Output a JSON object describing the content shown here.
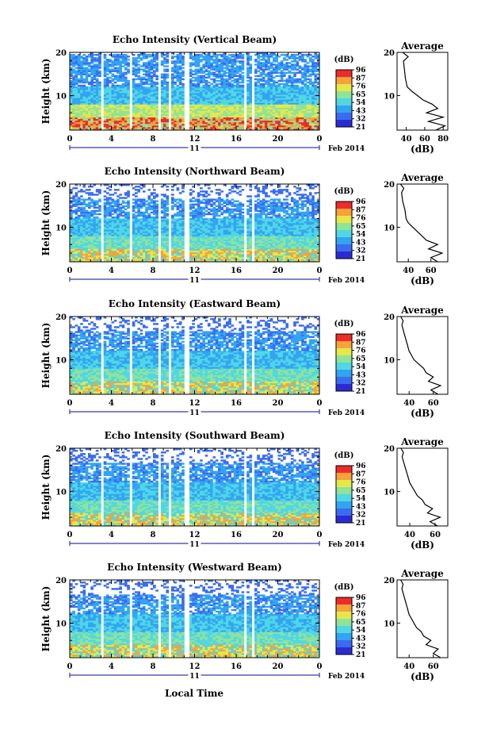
{
  "figure": {
    "x_axis_title": "Local Time",
    "date_label": "Feb 2014",
    "day_label": "11",
    "colorbar_unit": "(dB)",
    "colorbar_ticks": [
      "96",
      "87",
      "76",
      "65",
      "54",
      "43",
      "32",
      "21"
    ],
    "avg_title": "Average",
    "avg_unit": "(dB)",
    "colors": [
      "#2b2bd6",
      "#3a6cf0",
      "#33a4f2",
      "#4fd7e6",
      "#8fe39a",
      "#e6e84a",
      "#f6a23a",
      "#ee2a2a"
    ]
  },
  "chart_data": [
    {
      "type": "heatmap",
      "title": "Echo Intensity (Vertical Beam)",
      "ylabel": "Height (km)",
      "xlim": [
        0,
        24
      ],
      "ylim": [
        2,
        20
      ],
      "x_ticks": [
        "0",
        "4",
        "8",
        "12",
        "16",
        "20",
        "0"
      ],
      "y_ticks": [
        "10",
        "20"
      ],
      "colorbar_range_db": [
        21,
        96
      ],
      "average_profile": {
        "x_ticks": [
          "40",
          "60",
          "80"
        ],
        "y_ticks": [
          "10",
          "20"
        ],
        "xlim": [
          30,
          85
        ],
        "height_km": [
          2,
          3,
          4,
          5,
          6,
          7,
          8,
          9,
          10,
          11,
          12,
          14,
          16,
          18,
          19,
          20
        ],
        "db": [
          72,
          82,
          64,
          80,
          62,
          74,
          68,
          58,
          52,
          46,
          41,
          39,
          38,
          37,
          42,
          36
        ]
      }
    },
    {
      "type": "heatmap",
      "title": "Echo Intensity (Northward Beam)",
      "ylabel": "Height (km)",
      "xlim": [
        0,
        24
      ],
      "ylim": [
        2,
        20
      ],
      "x_ticks": [
        "0",
        "4",
        "8",
        "12",
        "16",
        "20",
        "0"
      ],
      "y_ticks": [
        "10",
        "20"
      ],
      "colorbar_range_db": [
        21,
        96
      ],
      "average_profile": {
        "x_ticks": [
          "40",
          "60"
        ],
        "y_ticks": [
          "10",
          "20"
        ],
        "xlim": [
          30,
          75
        ],
        "height_km": [
          2,
          3,
          4,
          5,
          6,
          7,
          8,
          9,
          10,
          11,
          12,
          14,
          16,
          18,
          19,
          20
        ],
        "db": [
          66,
          60,
          70,
          58,
          66,
          56,
          52,
          48,
          44,
          40,
          38,
          37,
          35,
          34,
          36,
          33
        ]
      }
    },
    {
      "type": "heatmap",
      "title": "Echo Intensity (Eastward Beam)",
      "ylabel": "Height (km)",
      "xlim": [
        0,
        24
      ],
      "ylim": [
        2,
        20
      ],
      "x_ticks": [
        "0",
        "4",
        "8",
        "12",
        "16",
        "20",
        "0"
      ],
      "y_ticks": [
        "10",
        "20"
      ],
      "colorbar_range_db": [
        21,
        96
      ],
      "average_profile": {
        "x_ticks": [
          "40",
          "60"
        ],
        "y_ticks": [
          "10",
          "20"
        ],
        "xlim": [
          30,
          72
        ],
        "height_km": [
          2,
          3,
          4,
          5,
          6,
          7,
          8,
          9,
          10,
          11,
          12,
          14,
          16,
          18,
          19,
          20
        ],
        "db": [
          64,
          58,
          66,
          56,
          60,
          54,
          52,
          48,
          44,
          42,
          40,
          38,
          36,
          34,
          35,
          33
        ]
      }
    },
    {
      "type": "heatmap",
      "title": "Echo Intensity (Southward Beam)",
      "ylabel": "Height (km)",
      "xlim": [
        0,
        24
      ],
      "ylim": [
        2,
        20
      ],
      "x_ticks": [
        "0",
        "4",
        "8",
        "12",
        "16",
        "20",
        "0"
      ],
      "y_ticks": [
        "10",
        "20"
      ],
      "colorbar_range_db": [
        21,
        96
      ],
      "average_profile": {
        "x_ticks": [
          "40",
          "60"
        ],
        "y_ticks": [
          "10",
          "20"
        ],
        "xlim": [
          30,
          70
        ],
        "height_km": [
          2,
          3,
          4,
          5,
          6,
          7,
          8,
          9,
          10,
          11,
          12,
          14,
          16,
          18,
          19,
          20
        ],
        "db": [
          62,
          56,
          64,
          54,
          58,
          52,
          50,
          46,
          44,
          42,
          40,
          38,
          36,
          34,
          35,
          33
        ]
      }
    },
    {
      "type": "heatmap",
      "title": "Echo Intensity (Westward Beam)",
      "ylabel": "Height (km)",
      "xlim": [
        0,
        24
      ],
      "ylim": [
        2,
        20
      ],
      "x_ticks": [
        "0",
        "4",
        "8",
        "12",
        "16",
        "20",
        "0"
      ],
      "y_ticks": [
        "10",
        "20"
      ],
      "colorbar_range_db": [
        21,
        96
      ],
      "average_profile": {
        "x_ticks": [
          "40",
          "60"
        ],
        "y_ticks": [
          "10",
          "20"
        ],
        "xlim": [
          30,
          72
        ],
        "height_km": [
          2,
          3,
          4,
          5,
          6,
          7,
          8,
          9,
          10,
          11,
          12,
          14,
          16,
          18,
          19,
          20
        ],
        "db": [
          66,
          60,
          64,
          54,
          58,
          52,
          50,
          46,
          44,
          42,
          40,
          38,
          36,
          34,
          35,
          33
        ]
      }
    }
  ]
}
